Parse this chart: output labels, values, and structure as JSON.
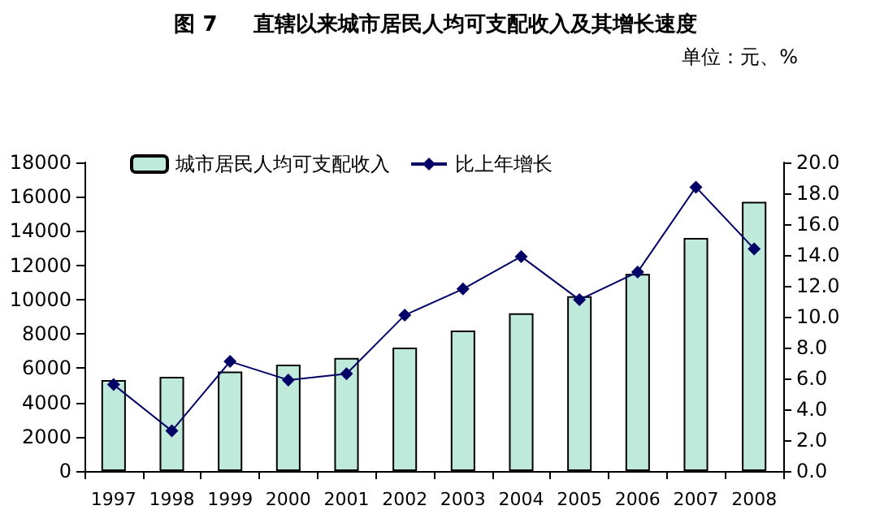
{
  "chart_data": {
    "type": "bar",
    "title": "图 7　  直辖以来城市居民人均可支配收入及其增长速度",
    "subtitle": "单位：元、%",
    "categories": [
      "1997",
      "1998",
      "1999",
      "2000",
      "2001",
      "2002",
      "2003",
      "2004",
      "2005",
      "2006",
      "2007",
      "2008"
    ],
    "series": [
      {
        "name": "城市居民人均可支配收入",
        "color": "#bfeadb",
        "values": [
          5300,
          5500,
          5800,
          6200,
          6600,
          7200,
          8200,
          9200,
          10200,
          11500,
          13600,
          15700
        ]
      },
      {
        "name": "比上年增长",
        "type": "line",
        "axis": "y2",
        "color": "#000066",
        "values": [
          5.6,
          2.6,
          7.1,
          5.9,
          6.3,
          10.1,
          11.8,
          13.9,
          11.1,
          12.9,
          18.4,
          14.4
        ]
      }
    ],
    "ylim": [
      0,
      18000
    ],
    "yticks": [
      0,
      2000,
      4000,
      6000,
      8000,
      10000,
      12000,
      14000,
      16000,
      18000
    ],
    "y2lim": [
      0,
      20
    ],
    "y2ticks": [
      {
        "value": 0,
        "label": "0.0"
      },
      {
        "value": 2,
        "label": "2.0"
      },
      {
        "value": 4,
        "label": "4.0"
      },
      {
        "value": 6,
        "label": "6.0"
      },
      {
        "value": 8,
        "label": "8.0"
      },
      {
        "value": 10,
        "label": "10.0"
      },
      {
        "value": 12,
        "label": "12.0"
      },
      {
        "value": 14,
        "label": "14.0"
      },
      {
        "value": 16,
        "label": "16.0"
      },
      {
        "value": 18,
        "label": "18.0"
      },
      {
        "value": 20,
        "label": "20.0"
      }
    ],
    "legend": "top",
    "grid": false,
    "marker": "diamond",
    "line_style": "solid"
  }
}
